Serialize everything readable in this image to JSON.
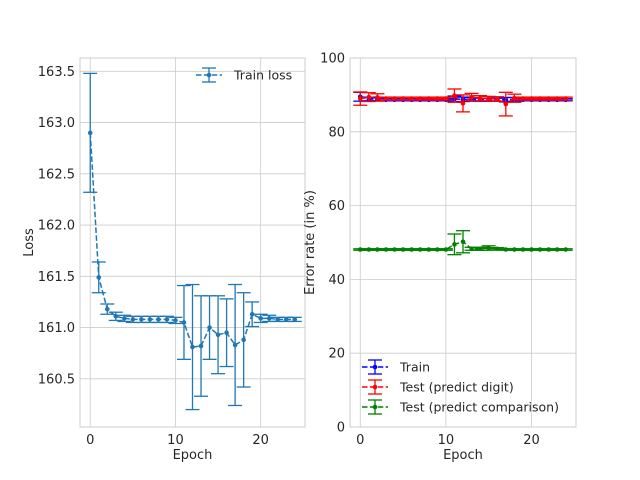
{
  "chart_data": [
    {
      "type": "line",
      "xlabel": "Epoch",
      "ylabel": "Loss",
      "xlim": [
        -1.2,
        25.2
      ],
      "ylim": [
        160.03,
        163.63
      ],
      "xticks": [
        0,
        10,
        20
      ],
      "yticks": [
        160.5,
        161.0,
        161.5,
        162.0,
        162.5,
        163.0,
        163.5
      ],
      "ytick_labels": [
        "160.5",
        "161.0",
        "161.5",
        "162.0",
        "162.5",
        "163.0",
        "163.5"
      ],
      "grid": true,
      "legend": "top-right",
      "series": [
        {
          "name": "Train loss",
          "color": "#1f77b4",
          "linestyle": "dashed",
          "x": [
            0,
            1,
            2,
            3,
            4,
            5,
            6,
            7,
            8,
            9,
            10,
            11,
            12,
            13,
            14,
            15,
            16,
            17,
            18,
            19,
            20,
            21,
            22,
            23,
            24
          ],
          "y": [
            162.9,
            161.49,
            161.18,
            161.11,
            161.09,
            161.08,
            161.08,
            161.08,
            161.08,
            161.08,
            161.07,
            161.05,
            160.81,
            160.82,
            161.0,
            160.93,
            160.95,
            160.83,
            160.88,
            161.13,
            161.09,
            161.09,
            161.08,
            161.08,
            161.08
          ],
          "err": [
            0.58,
            0.15,
            0.05,
            0.04,
            0.03,
            0.03,
            0.03,
            0.03,
            0.03,
            0.03,
            0.03,
            0.36,
            0.61,
            0.49,
            0.31,
            0.38,
            0.33,
            0.59,
            0.46,
            0.12,
            0.04,
            0.03,
            0.02,
            0.02,
            0.02
          ]
        }
      ]
    },
    {
      "type": "line",
      "xlabel": "Epoch",
      "ylabel": "Error rate (in %)",
      "xlim": [
        -1.2,
        25.2
      ],
      "ylim": [
        0,
        100
      ],
      "xticks": [
        0,
        10,
        20
      ],
      "yticks": [
        0,
        20,
        40,
        60,
        80,
        100
      ],
      "ytick_labels": [
        "0",
        "20",
        "40",
        "60",
        "80",
        "100"
      ],
      "grid": true,
      "legend": "bottom-left",
      "series": [
        {
          "name": "Train",
          "color": "#0000ff",
          "linestyle": "dashed",
          "x": [
            0,
            1,
            2,
            3,
            4,
            5,
            6,
            7,
            8,
            9,
            10,
            11,
            12,
            13,
            14,
            15,
            16,
            17,
            18,
            19,
            20,
            21,
            22,
            23,
            24
          ],
          "y": [
            89.5,
            88.9,
            88.8,
            88.7,
            88.7,
            88.7,
            88.7,
            88.7,
            88.7,
            88.7,
            88.7,
            88.9,
            88.8,
            88.8,
            88.7,
            88.7,
            88.7,
            88.7,
            88.8,
            88.7,
            88.7,
            88.7,
            88.7,
            88.7,
            88.7
          ],
          "err": [
            1.2,
            0.5,
            0.4,
            0.3,
            0.3,
            0.3,
            0.3,
            0.3,
            0.3,
            0.3,
            0.3,
            0.8,
            0.6,
            0.5,
            0.4,
            0.4,
            0.4,
            0.6,
            0.5,
            0.3,
            0.3,
            0.3,
            0.3,
            0.3,
            0.3
          ]
        },
        {
          "name": "Test (predict digit)",
          "color": "#ff0000",
          "linestyle": "dashed",
          "x": [
            0,
            1,
            2,
            3,
            4,
            5,
            6,
            7,
            8,
            9,
            10,
            11,
            12,
            13,
            14,
            15,
            16,
            17,
            18,
            19,
            20,
            21,
            22,
            23,
            24
          ],
          "y": [
            89.0,
            89.4,
            89.3,
            89.0,
            89.0,
            89.0,
            89.0,
            89.0,
            89.0,
            89.0,
            89.0,
            89.8,
            87.7,
            89.4,
            89.1,
            89.0,
            88.9,
            87.5,
            89.1,
            89.0,
            89.0,
            89.0,
            89.0,
            89.0,
            89.0
          ],
          "err": [
            1.8,
            1.2,
            1.0,
            0.4,
            0.4,
            0.4,
            0.4,
            0.4,
            0.4,
            0.4,
            0.4,
            1.8,
            2.3,
            1.0,
            0.7,
            0.6,
            0.6,
            3.2,
            1.1,
            0.4,
            0.4,
            0.4,
            0.4,
            0.4,
            0.4
          ]
        },
        {
          "name": "Test (predict comparison)",
          "color": "#008000",
          "linestyle": "dashed",
          "x": [
            0,
            1,
            2,
            3,
            4,
            5,
            6,
            7,
            8,
            9,
            10,
            11,
            12,
            13,
            14,
            15,
            16,
            17,
            18,
            19,
            20,
            21,
            22,
            23,
            24
          ],
          "y": [
            48.1,
            48.1,
            48.1,
            48.1,
            48.1,
            48.1,
            48.1,
            48.1,
            48.1,
            48.1,
            48.1,
            49.5,
            50.2,
            48.3,
            48.3,
            48.5,
            48.3,
            48.1,
            48.1,
            48.1,
            48.1,
            48.1,
            48.1,
            48.1,
            48.1
          ],
          "err": [
            0.2,
            0.2,
            0.2,
            0.2,
            0.2,
            0.2,
            0.2,
            0.2,
            0.2,
            0.2,
            0.2,
            2.8,
            3.0,
            0.4,
            0.4,
            0.6,
            0.3,
            0.2,
            0.2,
            0.2,
            0.2,
            0.2,
            0.2,
            0.2,
            0.2
          ]
        }
      ]
    }
  ]
}
